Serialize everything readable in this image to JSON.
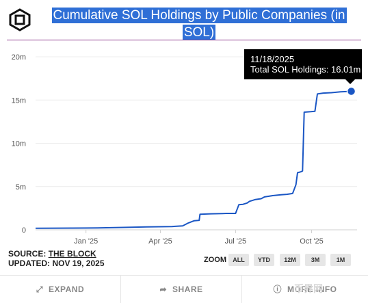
{
  "title": "Cumulative SOL Holdings by Public Companies (in SOL)",
  "tooltip": {
    "date": "11/18/2025",
    "text": "Total SOL Holdings: 16.01m"
  },
  "source": {
    "label": "SOURCE:",
    "name": "THE BLOCK",
    "updated": "UPDATED: NOV 19, 2025"
  },
  "zoom": {
    "label": "ZOOM",
    "buttons": [
      "ALL",
      "YTD",
      "12M",
      "3M",
      "1M"
    ]
  },
  "footer": {
    "expand": "EXPAND",
    "share": "SHARE",
    "more": "MORE INFO"
  },
  "watermark": "币界网",
  "colors": {
    "line": "#1a56c4",
    "highlight": "#2f6fd6",
    "tooltip_bg": "#000000"
  },
  "icons": {
    "logo": "the-block-cube-logo",
    "expand": "expand-arrows-icon",
    "share": "share-arrow-icon",
    "more": "info-icon"
  },
  "chart_data": {
    "type": "line",
    "title": "Cumulative SOL Holdings by Public Companies (in SOL)",
    "ylim": [
      0,
      20000000
    ],
    "yticks": [
      {
        "value": 0,
        "label": "0"
      },
      {
        "value": 5000000,
        "label": "5m"
      },
      {
        "value": 10000000,
        "label": "10m"
      },
      {
        "value": 15000000,
        "label": "15m"
      },
      {
        "value": 20000000,
        "label": "20m"
      }
    ],
    "xlim": [
      "2024-11-01",
      "2025-11-25"
    ],
    "xticks": [
      {
        "value": "2025-01-01",
        "label": "Jan '25"
      },
      {
        "value": "2025-04-01",
        "label": "Apr '25"
      },
      {
        "value": "2025-07-01",
        "label": "Jul '25"
      },
      {
        "value": "2025-10-01",
        "label": "Oct '25"
      }
    ],
    "grid": "horizontal",
    "series": [
      {
        "points": [
          [
            "2024-11-01",
            180000
          ],
          [
            "2024-12-15",
            200000
          ],
          [
            "2025-01-15",
            220000
          ],
          [
            "2025-02-15",
            280000
          ],
          [
            "2025-03-15",
            330000
          ],
          [
            "2025-04-15",
            380000
          ],
          [
            "2025-04-28",
            450000
          ],
          [
            "2025-05-05",
            800000
          ],
          [
            "2025-05-12",
            1050000
          ],
          [
            "2025-05-18",
            1100000
          ],
          [
            "2025-05-19",
            1800000
          ],
          [
            "2025-06-01",
            1850000
          ],
          [
            "2025-06-15",
            1880000
          ],
          [
            "2025-06-20",
            1900000
          ],
          [
            "2025-07-01",
            1900000
          ],
          [
            "2025-07-05",
            2900000
          ],
          [
            "2025-07-10",
            2950000
          ],
          [
            "2025-07-15",
            3100000
          ],
          [
            "2025-07-18",
            3300000
          ],
          [
            "2025-07-25",
            3500000
          ],
          [
            "2025-08-01",
            3600000
          ],
          [
            "2025-08-05",
            3800000
          ],
          [
            "2025-08-15",
            3950000
          ],
          [
            "2025-08-25",
            4050000
          ],
          [
            "2025-09-01",
            4100000
          ],
          [
            "2025-09-08",
            4200000
          ],
          [
            "2025-09-12",
            5200000
          ],
          [
            "2025-09-14",
            6600000
          ],
          [
            "2025-09-18",
            6700000
          ],
          [
            "2025-09-20",
            6800000
          ],
          [
            "2025-09-22",
            13600000
          ],
          [
            "2025-09-30",
            13650000
          ],
          [
            "2025-10-05",
            13700000
          ],
          [
            "2025-10-08",
            15700000
          ],
          [
            "2025-10-15",
            15800000
          ],
          [
            "2025-10-25",
            15850000
          ],
          [
            "2025-11-05",
            15950000
          ],
          [
            "2025-11-18",
            16010000
          ]
        ]
      }
    ],
    "highlight": {
      "x": "2025-11-18",
      "y": 16010000
    }
  }
}
